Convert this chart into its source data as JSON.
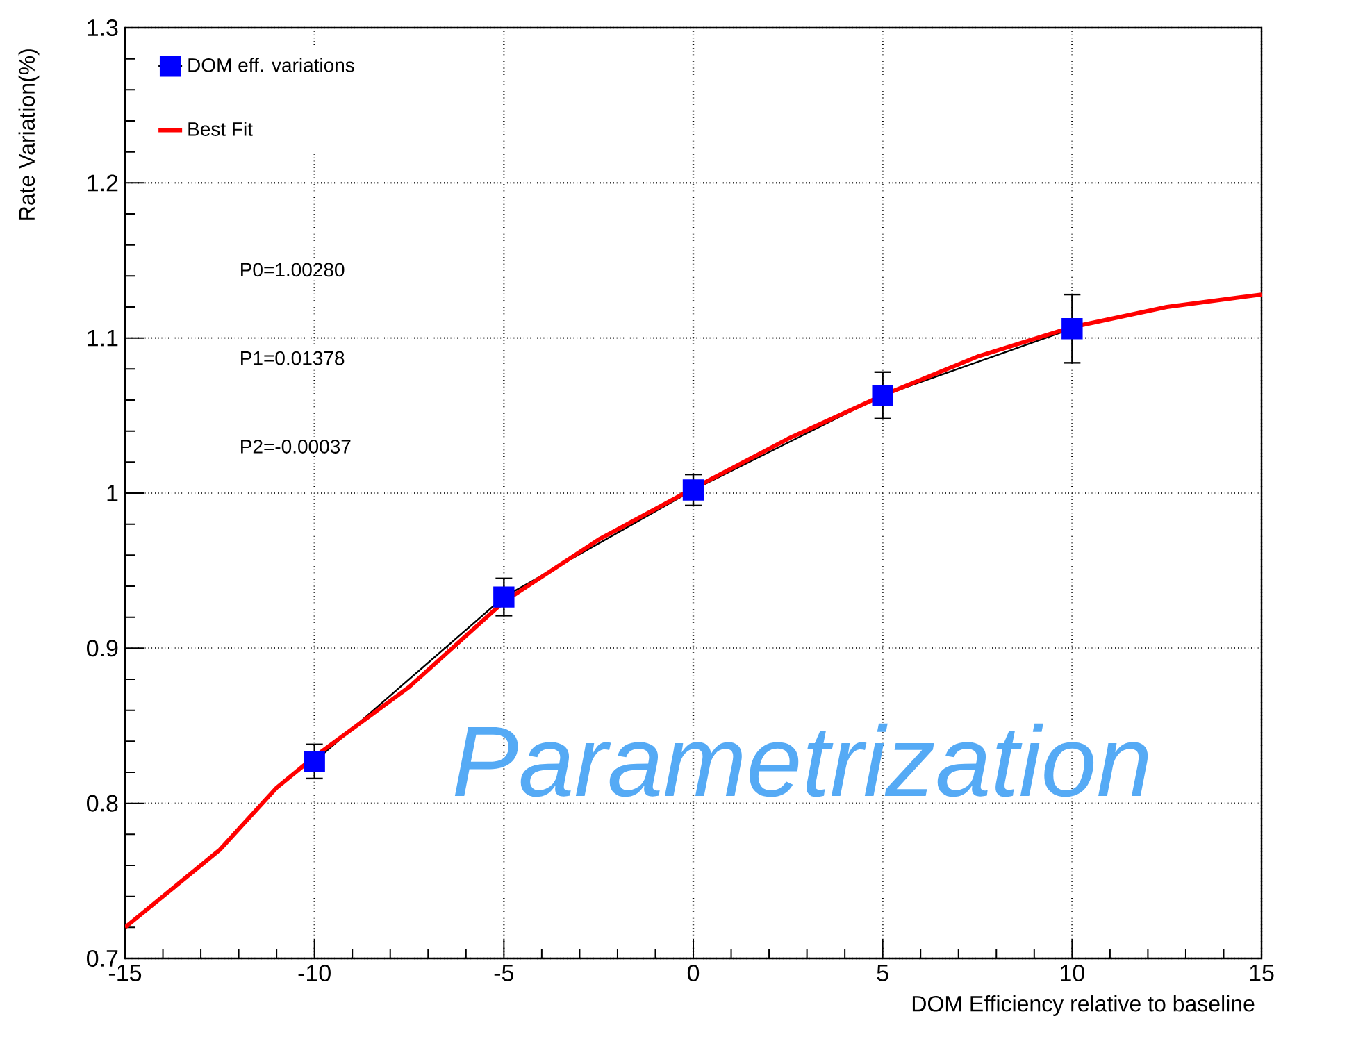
{
  "chart_data": {
    "type": "line",
    "title": "Parametrization",
    "xlabel": "DOM Efficiency relative to baseline",
    "ylabel": "Rate Variation(%)",
    "xlim": [
      -15,
      15
    ],
    "xticks": [
      -15,
      -10,
      -5,
      0,
      5,
      10,
      15
    ],
    "ylim": [
      0.7,
      1.3
    ],
    "yticks": [
      0.7,
      0.8,
      0.9,
      1,
      1.1,
      1.2,
      1.3
    ],
    "grid": true,
    "legend": "top left",
    "marker": "square",
    "annotations": [
      "P0=1.00280",
      "P1=0.01378",
      "P2=-0.00037"
    ],
    "series": [
      {
        "name": "DOM eff. variations",
        "color": "#0000ff",
        "x": [
          -10,
          -5,
          0,
          5,
          10
        ],
        "values": [
          0.827,
          0.933,
          1.002,
          1.063,
          1.106
        ],
        "errors": [
          0.011,
          0.012,
          0.01,
          0.015,
          0.022
        ]
      },
      {
        "name": "Best Fit",
        "color": "#ff0000",
        "marker": "none",
        "x": [
          -15,
          -12.5,
          -11,
          -10,
          -7.5,
          -5,
          -2.5,
          0,
          2.5,
          5,
          7.5,
          10,
          12.5,
          15
        ],
        "values": [
          0.72,
          0.77,
          0.81,
          0.83,
          0.875,
          0.93,
          0.97,
          1.003,
          1.035,
          1.063,
          1.088,
          1.107,
          1.12,
          1.128
        ]
      }
    ]
  }
}
